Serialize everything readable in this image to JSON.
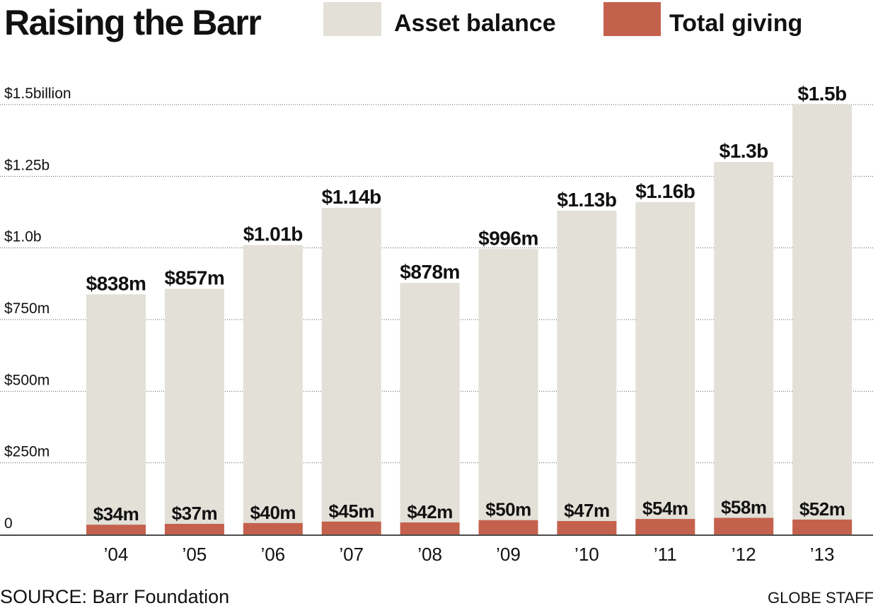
{
  "title": "Raising the Barr",
  "legend": [
    {
      "label": "Asset balance",
      "color": "#e2e0d7"
    },
    {
      "label": "Total giving",
      "color": "#c4614d"
    }
  ],
  "source": "SOURCE: Barr Foundation",
  "credit": "GLOBE STAFF",
  "chart_data": {
    "type": "bar",
    "categories": [
      "’04",
      "’05",
      "’06",
      "’07",
      "’08",
      "’09",
      "’10",
      "’11",
      "’12",
      "’13"
    ],
    "series": [
      {
        "name": "Asset balance",
        "values": [
          838,
          857,
          1010,
          1140,
          878,
          996,
          1130,
          1160,
          1300,
          1500
        ],
        "labels": [
          "$838m",
          "$857m",
          "$1.01b",
          "$1.14b",
          "$878m",
          "$996m",
          "$1.13b",
          "$1.16b",
          "$1.3b",
          "$1.5b"
        ]
      },
      {
        "name": "Total giving",
        "values": [
          34,
          37,
          40,
          45,
          42,
          50,
          47,
          54,
          58,
          52
        ],
        "labels": [
          "$34m",
          "$37m",
          "$40m",
          "$45m",
          "$42m",
          "$50m",
          "$47m",
          "$54m",
          "$58m",
          "$52m"
        ]
      }
    ],
    "y_ticks": [
      0,
      250,
      500,
      750,
      1000,
      1250,
      1500
    ],
    "y_tick_labels": [
      "0",
      "$250m",
      "$500m",
      "$750m",
      "$1.0b",
      "$1.25b",
      "$1.5billion"
    ],
    "ylim": [
      0,
      1500
    ],
    "units": "millions of dollars",
    "grid": "dotted horizontal",
    "legend_position": "top"
  }
}
